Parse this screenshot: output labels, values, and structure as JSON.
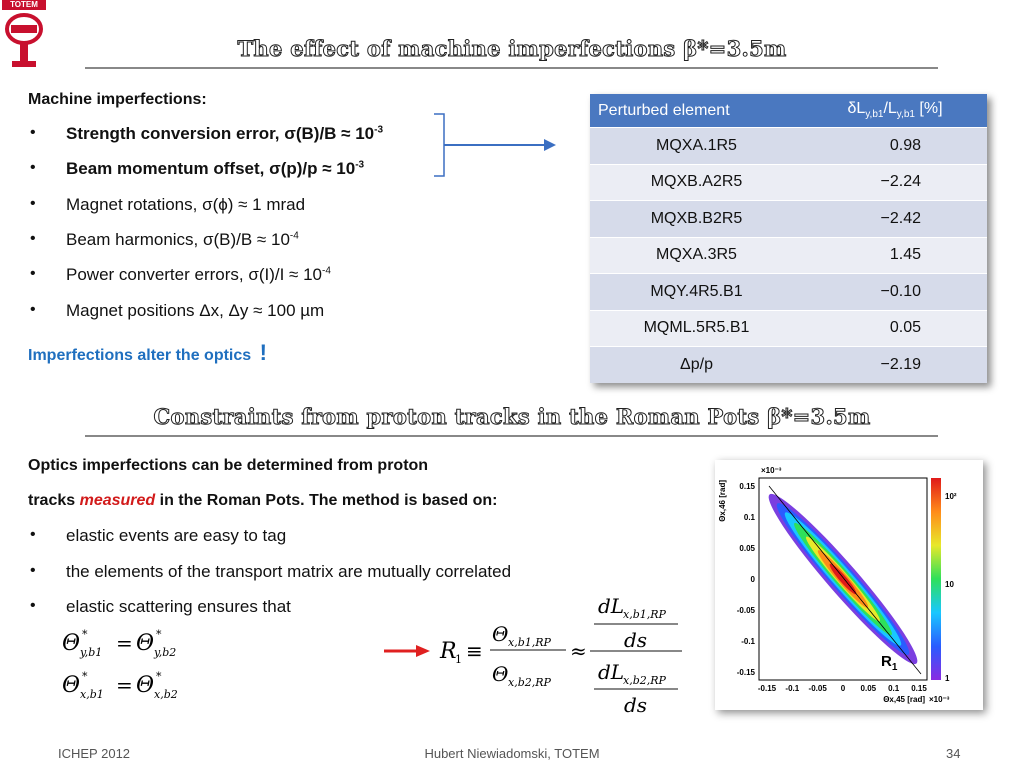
{
  "logo": {
    "text": "TOTEM"
  },
  "title1": "The effect of machine imperfections β*=3.5m",
  "title2": "Constraints from proton tracks in the Roman Pots β*=3.5m",
  "imperfections": {
    "heading": "Machine imperfections:",
    "items": [
      {
        "text": "Strength conversion error, σ(B)/B ≈ 10",
        "sup": "-3",
        "bold": true
      },
      {
        "text": "Beam momentum offset, σ(p)/p ≈ 10",
        "sup": "-3",
        "bold": true
      },
      {
        "text": "Magnet rotations, σ(ϕ) ≈ 1 mrad",
        "sup": "",
        "bold": false
      },
      {
        "text": "Beam harmonics, σ(B)/B ≈ 10",
        "sup": "-4",
        "bold": false
      },
      {
        "text": "Power converter errors, σ(I)/I ≈ 10",
        "sup": "-4",
        "bold": false
      },
      {
        "text": "Magnet positions Δx, Δy ≈ 100 µm",
        "sup": "",
        "bold": false
      }
    ],
    "conclusion": "Imperfections alter the optics",
    "conclusion_mark": "!"
  },
  "table": {
    "col1": "Perturbed element",
    "col2_main": "δL",
    "col2_sub1": "y,b1",
    "col2_slash": "/L",
    "col2_sub2": "y,b1",
    "col2_unit": " [%]",
    "rows": [
      {
        "element": "MQXA.1R5",
        "value": "0.98"
      },
      {
        "element": "MQXB.A2R5",
        "value": "−2.24"
      },
      {
        "element": "MQXB.B2R5",
        "value": "−2.42"
      },
      {
        "element": "MQXA.3R5",
        "value": "1.45"
      },
      {
        "element": "MQY.4R5.B1",
        "value": "−0.10"
      },
      {
        "element": "MQML.5R5.B1",
        "value": "0.05"
      },
      {
        "element": "Δp/p",
        "value": "−2.19"
      }
    ]
  },
  "optics": {
    "line1": "Optics imperfections can be determined from proton",
    "line2_pre": "tracks ",
    "line2_em": "measured",
    "line2_post": " in the Roman Pots. The method is based on:",
    "bullets": [
      "elastic events are easy to tag",
      "the elements of the transport matrix are mutually correlated",
      "elastic scattering ensures that"
    ]
  },
  "plot": {
    "xlabel": "Θx,45 [rad]",
    "ylabel": "Θx,46 [rad]",
    "exp_top": "×10⁻³",
    "exp_right": "×10⁻³",
    "xticks": [
      "-0.15",
      "-0.1",
      "-0.05",
      "0",
      "0.05",
      "0.1",
      "0.15"
    ],
    "yticks": [
      "0.15",
      "0.1",
      "0.05",
      "0",
      "-0.05",
      "-0.1",
      "-0.15"
    ],
    "zticks": [
      "10²",
      "10",
      "1"
    ],
    "label_main": "R",
    "label_sub": "1"
  },
  "footer": {
    "left": "ICHEP 2012",
    "center": "Hubert Niewiadomski, TOTEM",
    "page": "34"
  },
  "colors": {
    "accent": "#1f6fbf",
    "table_header": "#4a78c0",
    "highlight": "#d21b1b"
  }
}
